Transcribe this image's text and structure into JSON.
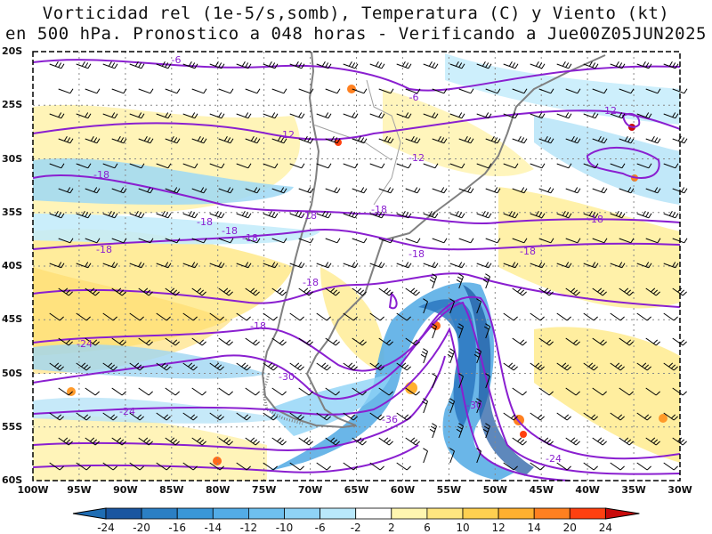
{
  "title_line1": "Vorticidad rel (1e-5/s,somb), Temperatura (C) y Viento (kt)",
  "title_line2": "en 500 hPa. Pronostico a 048 horas - Verificando a Jue00Z05JUN2025",
  "lat_ticks": [
    "20S",
    "25S",
    "30S",
    "35S",
    "40S",
    "45S",
    "50S",
    "55S",
    "60S"
  ],
  "lon_ticks": [
    "100W",
    "95W",
    "90W",
    "85W",
    "80W",
    "75W",
    "70W",
    "65W",
    "60W",
    "55W",
    "50W",
    "45W",
    "40W",
    "35W",
    "30W"
  ],
  "colorbar": {
    "labels": [
      "-24",
      "-20",
      "-16",
      "-14",
      "-12",
      "-10",
      "-6",
      "-2",
      "2",
      "6",
      "10",
      "12",
      "14",
      "20",
      "24"
    ],
    "colors": [
      "#1a56a0",
      "#2b7fc4",
      "#3a97d8",
      "#53ace6",
      "#6ec0ef",
      "#8fd3f6",
      "#b9e8fb",
      "#ffffff",
      "#fff6b0",
      "#ffe680",
      "#ffd050",
      "#ffb030",
      "#ff8020",
      "#ff4010",
      "#c80a0a"
    ]
  },
  "contour_labels": [
    {
      "text": "-6"
    },
    {
      "text": "-6"
    },
    {
      "text": "-12"
    },
    {
      "text": "-12"
    },
    {
      "text": "-12"
    },
    {
      "text": "-18"
    },
    {
      "text": "-18"
    },
    {
      "text": "-18"
    },
    {
      "text": "-18"
    },
    {
      "text": "-18"
    },
    {
      "text": "-18"
    },
    {
      "text": "-18"
    },
    {
      "text": "-18"
    },
    {
      "text": "-18"
    },
    {
      "text": "-18"
    },
    {
      "text": "-18"
    },
    {
      "text": "-18"
    },
    {
      "text": "-24"
    },
    {
      "text": "-24"
    },
    {
      "text": "-30"
    },
    {
      "text": "-30"
    },
    {
      "text": "-36"
    },
    {
      "text": "-24"
    }
  ]
}
